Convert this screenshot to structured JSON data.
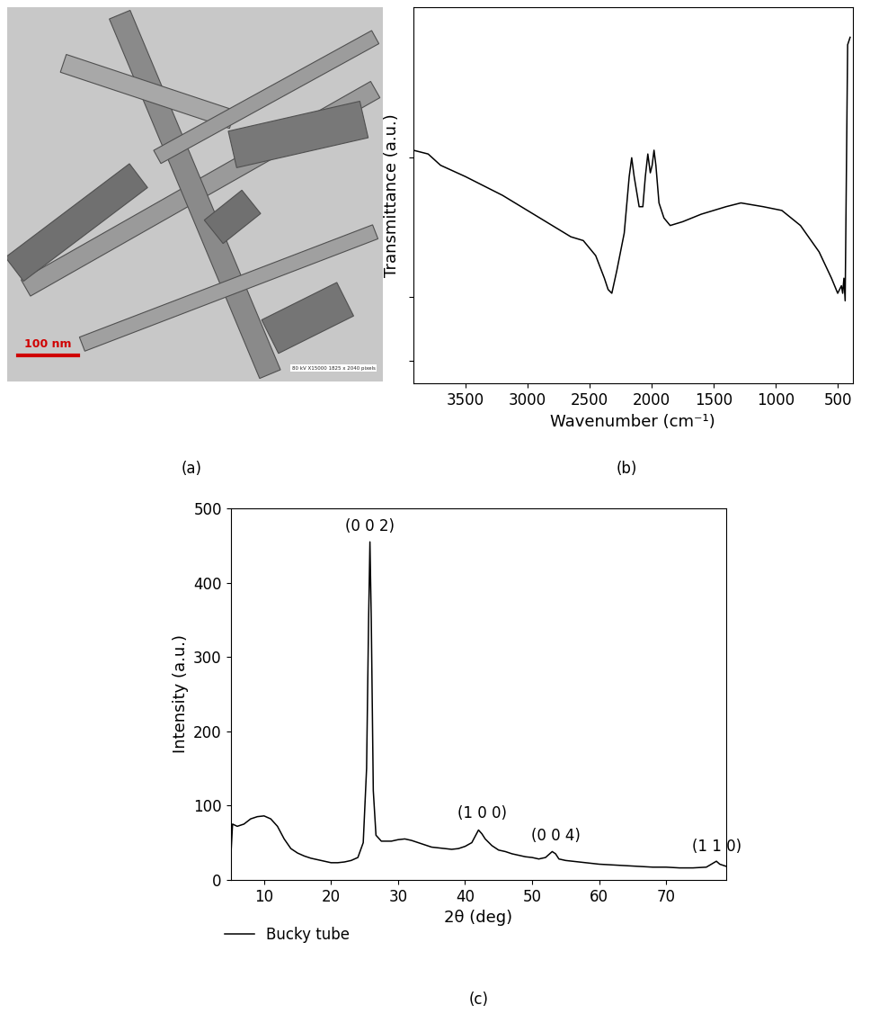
{
  "chart_data": [
    {
      "type": "image",
      "label": "(a)",
      "scale_bar": "100 nm",
      "caption": "80 kV X15000 1825 x 2040 pixels"
    },
    {
      "type": "line",
      "label": "(b)",
      "x_label": "Wavenumber (cm⁻¹)",
      "y_label": "Transmittance (a.u.)",
      "xlim": [
        3920,
        380
      ],
      "ylim": [
        0,
        100
      ],
      "xticks": [
        3500,
        3000,
        2500,
        2000,
        1500,
        1000,
        500
      ],
      "yticks": [
        6,
        23,
        60
      ],
      "tick_labels": "x",
      "series": [
        {
          "color": "#000000",
          "x": [
            3920,
            3800,
            3700,
            3500,
            3200,
            3000,
            2800,
            2650,
            2550,
            2450,
            2380,
            2350,
            2320,
            2280,
            2220,
            2180,
            2160,
            2140,
            2100,
            2070,
            2050,
            2030,
            2010,
            1995,
            1980,
            1965,
            1940,
            1900,
            1850,
            1750,
            1600,
            1400,
            1280,
            1100,
            950,
            800,
            650,
            550,
            500,
            470,
            460,
            450,
            440,
            420,
            400
          ],
          "values": [
            62,
            61,
            58,
            55,
            50,
            46,
            42,
            39,
            38,
            34,
            28,
            25,
            24,
            30,
            40,
            55,
            60,
            55,
            47,
            47,
            55,
            61,
            56,
            58,
            62,
            58,
            48,
            44,
            42,
            43,
            45,
            47,
            48,
            47,
            46,
            42,
            35,
            28,
            24,
            26,
            24,
            28,
            22,
            90,
            92
          ]
        }
      ]
    },
    {
      "type": "line",
      "label": "(c)",
      "x_label": "2θ (deg)",
      "y_label": "Intensity (a.u.)",
      "xlim": [
        5,
        79
      ],
      "ylim": [
        0,
        500
      ],
      "xticks": [
        10,
        20,
        30,
        40,
        50,
        60,
        70
      ],
      "yticks": [
        0,
        100,
        200,
        300,
        400,
        500
      ],
      "legend": "lower center",
      "series": [
        {
          "name": "Bucky tube",
          "color": "#000000",
          "x": [
            5,
            5.3,
            6,
            7,
            8,
            9,
            10,
            11,
            12,
            13,
            14,
            15,
            16,
            17,
            18,
            19,
            20,
            21,
            22,
            23,
            24,
            24.8,
            25.3,
            25.6,
            25.8,
            26.0,
            26.3,
            26.7,
            27.5,
            28,
            29,
            30,
            31,
            32,
            33,
            34,
            35,
            36,
            37,
            38,
            39,
            40,
            41,
            42,
            42.5,
            43,
            44,
            45,
            46,
            47,
            48,
            49,
            50,
            51,
            52,
            53,
            53.5,
            54,
            55,
            56,
            58,
            60,
            62,
            64,
            66,
            68,
            70,
            72,
            74,
            76,
            77.5,
            78,
            79
          ],
          "values": [
            25,
            75,
            72,
            75,
            82,
            85,
            86,
            82,
            72,
            55,
            42,
            36,
            32,
            29,
            27,
            25,
            23,
            23,
            24,
            26,
            30,
            50,
            150,
            350,
            455,
            350,
            120,
            60,
            52,
            52,
            52,
            54,
            55,
            53,
            50,
            47,
            44,
            43,
            42,
            41,
            42,
            45,
            50,
            67,
            62,
            55,
            46,
            40,
            38,
            35,
            33,
            31,
            30,
            28,
            30,
            38,
            35,
            28,
            26,
            25,
            23,
            21,
            20,
            19,
            18,
            17,
            17,
            16,
            16,
            17,
            25,
            21,
            18
          ]
        }
      ],
      "annotations": [
        {
          "text": "(0 0 2)",
          "x": 25.8,
          "y": 465
        },
        {
          "text": "(1 0 0)",
          "x": 42.5,
          "y": 78
        },
        {
          "text": "(0 0 4)",
          "x": 53.5,
          "y": 48
        },
        {
          "text": "(1 1 0)",
          "x": 77.5,
          "y": 34
        }
      ]
    }
  ]
}
